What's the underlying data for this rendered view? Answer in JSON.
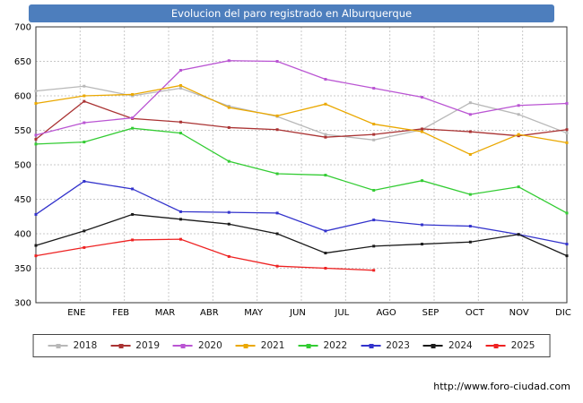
{
  "header": {
    "bg": "#4d7ebd"
  },
  "chart_data": {
    "type": "line",
    "title": "Evolucion del paro registrado en Alburquerque",
    "categories": [
      "ENE",
      "FEB",
      "MAR",
      "ABR",
      "MAY",
      "JUN",
      "JUL",
      "AGO",
      "SEP",
      "OCT",
      "NOV",
      "DIC"
    ],
    "xlabel": "",
    "ylabel": "",
    "ylim": [
      300,
      700
    ],
    "ytick_step": 50,
    "grid": true,
    "grid_color": "#c8c8c8",
    "frame_color": "#333333",
    "legend_position": "bottom",
    "series": [
      {
        "name": "2018",
        "color": "#b8b8b8",
        "values": [
          607,
          614,
          600,
          611,
          585,
          570,
          544,
          536,
          551,
          590,
          573,
          546
        ]
      },
      {
        "name": "2019",
        "color": "#aa3333",
        "values": [
          537,
          592,
          567,
          562,
          554,
          551,
          540,
          544,
          552,
          548,
          542,
          551
        ]
      },
      {
        "name": "2020",
        "color": "#ba55d3",
        "values": [
          543,
          561,
          568,
          637,
          651,
          650,
          624,
          611,
          598,
          573,
          586,
          589
        ]
      },
      {
        "name": "2021",
        "color": "#eaa800",
        "values": [
          589,
          600,
          602,
          615,
          583,
          571,
          588,
          559,
          548,
          515,
          544,
          532
        ]
      },
      {
        "name": "2022",
        "color": "#33cc33",
        "values": [
          530,
          533,
          553,
          546,
          505,
          487,
          485,
          463,
          477,
          457,
          468,
          430
        ]
      },
      {
        "name": "2023",
        "color": "#3333cc",
        "values": [
          428,
          476,
          465,
          432,
          431,
          430,
          404,
          420,
          413,
          411,
          399,
          385
        ]
      },
      {
        "name": "2024",
        "color": "#1a1a1a",
        "values": [
          383,
          404,
          428,
          421,
          414,
          400,
          372,
          382,
          385,
          388,
          399,
          368
        ]
      },
      {
        "name": "2025",
        "color": "#ee2222",
        "values": [
          368,
          380,
          391,
          392,
          367,
          353,
          350,
          347
        ]
      }
    ]
  },
  "footer": {
    "url": "http://www.foro-ciudad.com"
  }
}
